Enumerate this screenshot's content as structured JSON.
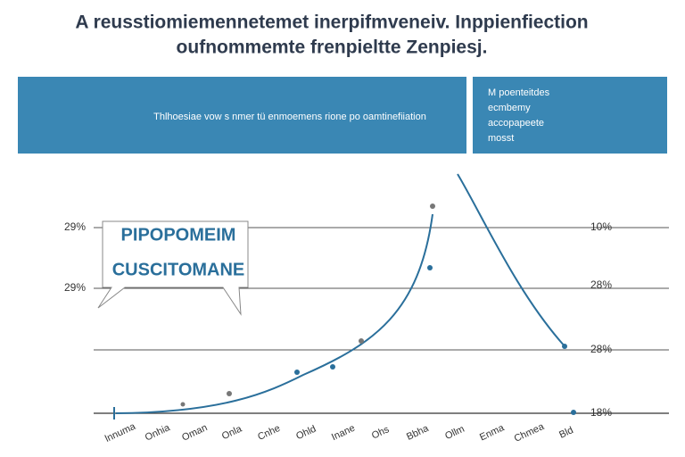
{
  "header": {
    "title": [
      "A reusstiomiemennetemet inerpifmveneiv. Inppienfiection",
      "oufnommemte frenpieltte Zenpiesj."
    ]
  },
  "banner": {
    "text": "Thlhoesiae vow s nmer tü  enmoemens rione po oamtinefiiation"
  },
  "side_box": {
    "lines": [
      "M poenteitdes",
      "ecmbemy",
      "accopapeete",
      "mosst"
    ]
  },
  "callout": {
    "lines": [
      "PIPOPOMEIM",
      "CUSCITOMANE"
    ]
  },
  "left_labels": [
    "29%",
    "29%"
  ],
  "right_labels": [
    "10%",
    "28%",
    "28%",
    "18%"
  ],
  "x_labels": [
    "lnnuma",
    "Onhia",
    "Oman",
    "Onla",
    "Cnhe",
    "Ohld",
    "Inane",
    "Ohs",
    "Bbha",
    "Ollm",
    "Enma",
    "Chmea",
    "Bld"
  ]
}
